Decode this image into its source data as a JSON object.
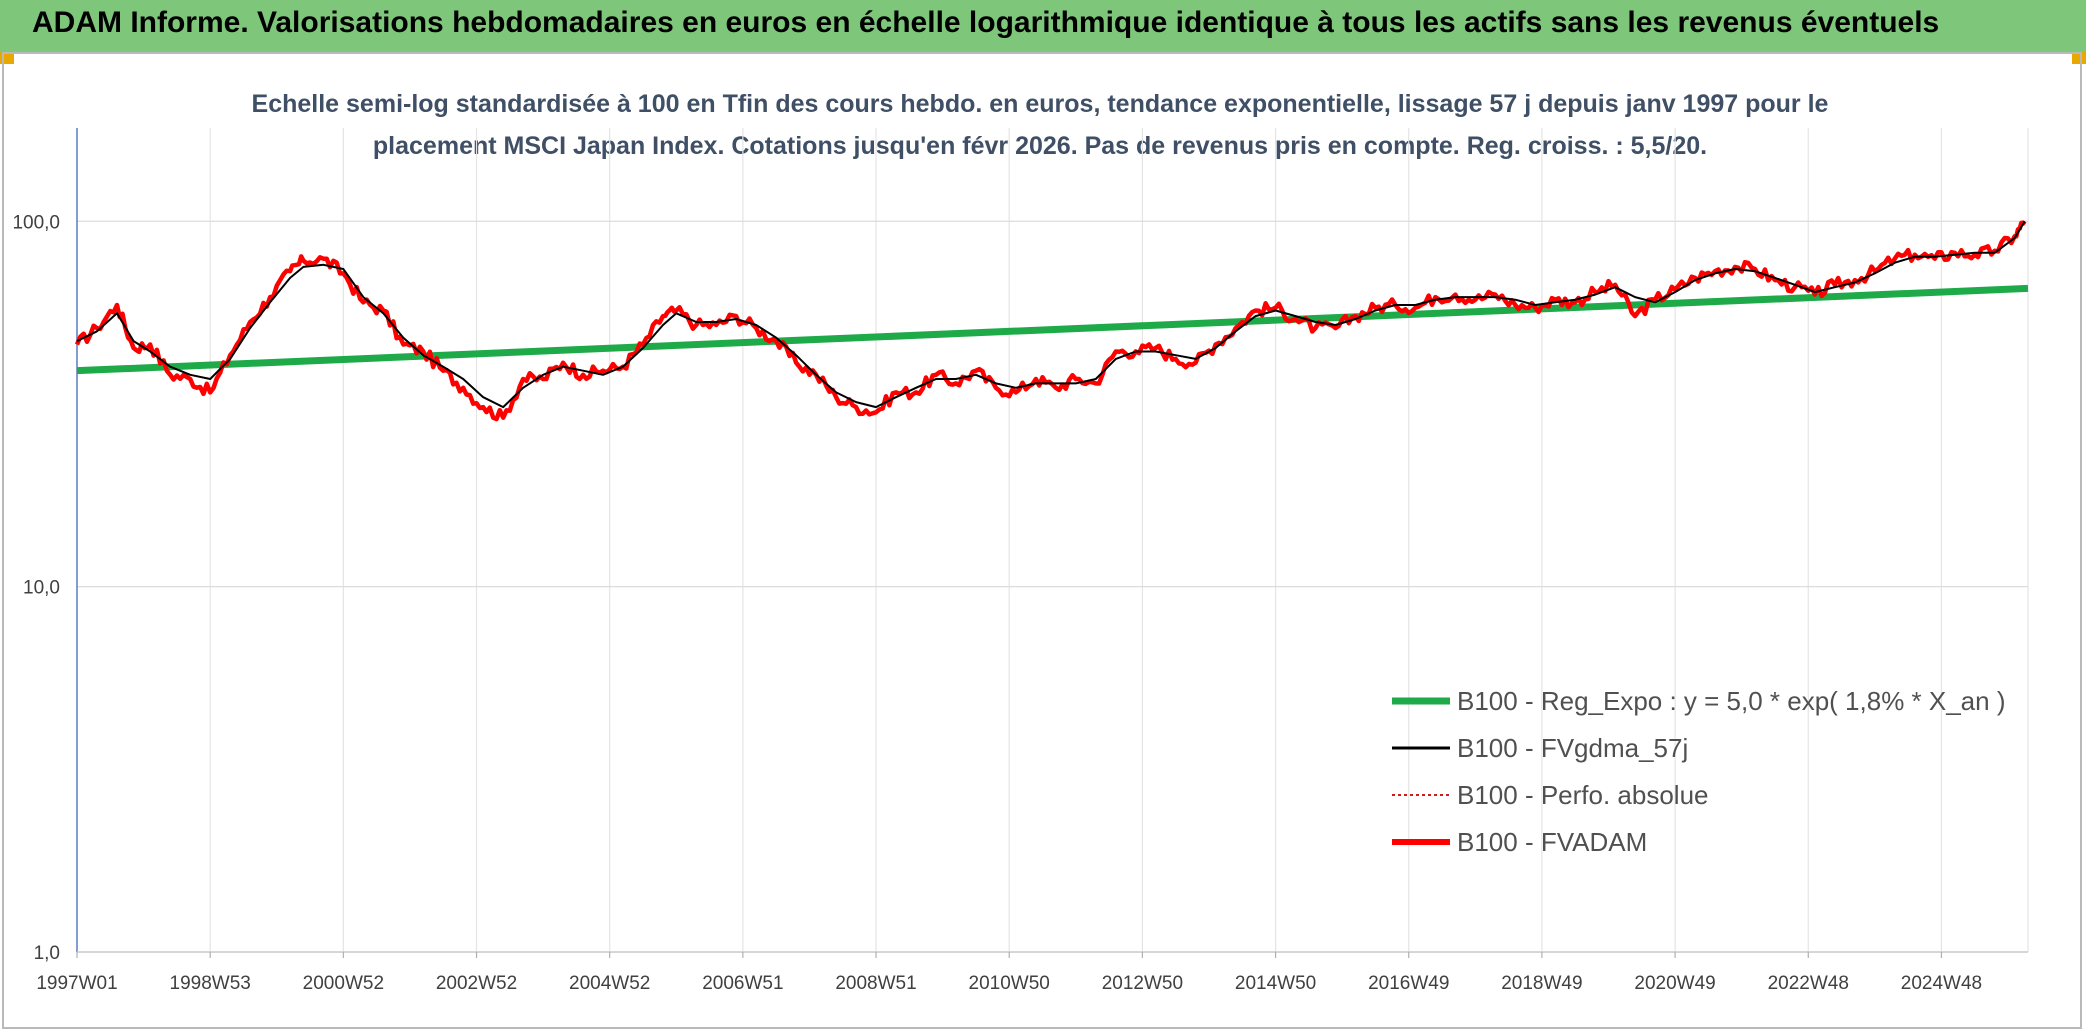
{
  "banner": {
    "title": "ADAM Informe. Valorisations hebdomadaires en euros en échelle logarithmique identique à tous les actifs sans les revenus éventuels",
    "color": "#7dc67a"
  },
  "chart_data": {
    "type": "line",
    "subtitle_lines": [
      "Echelle semi-log standardisée à 100 en Tfin des cours hebdo. en euros, tendance exponentielle, lissage 57 j depuis janv 1997 pour le",
      "placement MSCI Japan Index. Cotations jusqu'en févr 2026. Pas de revenus pris en compte. Reg. croiss. : 5,5/20."
    ],
    "y_scale": "log",
    "ylim": [
      1,
      180
    ],
    "y_ticks": [
      1,
      10,
      100
    ],
    "y_tick_labels": [
      "1,0",
      "10,0",
      "100,0"
    ],
    "xlim": [
      1997.0,
      2026.3
    ],
    "x_ticks": [
      1997.0,
      1999.0,
      2001.0,
      2003.0,
      2005.0,
      2007.0,
      2009.0,
      2011.0,
      2013.0,
      2015.0,
      2017.0,
      2019.0,
      2021.0,
      2023.0,
      2025.0
    ],
    "x_tick_labels": [
      "1997W01",
      "1998W53",
      "2000W52",
      "2002W52",
      "2004W52",
      "2006W51",
      "2008W51",
      "2010W50",
      "2012W50",
      "2014W50",
      "2016W49",
      "2018W49",
      "2020W49",
      "2022W48",
      "2024W48"
    ],
    "grid": true,
    "legend_position": "bottom-right",
    "series": [
      {
        "name": "B100 - Reg_Expo : y = 5,0 * exp( 1,8% *  X_an )",
        "color": "#1faa4a",
        "style": "solid-thick",
        "x": [
          1997.0,
          2026.3
        ],
        "values": [
          39,
          65.5
        ]
      },
      {
        "name": "B100 - FVgdma_57j",
        "color": "#000000",
        "style": "solid",
        "x": [
          1997.0,
          1997.3,
          1997.6,
          1997.85,
          1998.1,
          1998.4,
          1998.7,
          1999.0,
          1999.3,
          1999.6,
          1999.9,
          2000.2,
          2000.4,
          2000.7,
          2001.0,
          2001.3,
          2001.6,
          2001.9,
          2002.2,
          2002.5,
          2002.8,
          2003.1,
          2003.4,
          2003.7,
          2004.0,
          2004.3,
          2004.6,
          2004.9,
          2005.2,
          2005.5,
          2005.8,
          2006.0,
          2006.3,
          2006.6,
          2006.9,
          2007.2,
          2007.5,
          2007.8,
          2008.1,
          2008.4,
          2008.7,
          2009.0,
          2009.3,
          2009.6,
          2009.9,
          2010.2,
          2010.5,
          2010.8,
          2011.1,
          2011.4,
          2011.7,
          2012.0,
          2012.3,
          2012.6,
          2012.9,
          2013.2,
          2013.5,
          2013.8,
          2014.1,
          2014.4,
          2014.7,
          2015.0,
          2015.3,
          2015.6,
          2015.9,
          2016.2,
          2016.5,
          2016.8,
          2017.1,
          2017.4,
          2017.7,
          2018.0,
          2018.3,
          2018.6,
          2018.9,
          2019.2,
          2019.5,
          2019.8,
          2020.1,
          2020.4,
          2020.7,
          2021.0,
          2021.3,
          2021.6,
          2021.9,
          2022.2,
          2022.5,
          2022.8,
          2023.1,
          2023.4,
          2023.7,
          2024.0,
          2024.3,
          2024.6,
          2024.9,
          2025.2,
          2025.5,
          2025.8,
          2026.1,
          2026.25
        ],
        "values": [
          47,
          50,
          56,
          47,
          44,
          40,
          38,
          37,
          42,
          51,
          60,
          70,
          75,
          76,
          74,
          62,
          56,
          48,
          43,
          40,
          37,
          33,
          31,
          35,
          38,
          40,
          39,
          38,
          40,
          45,
          52,
          56,
          53,
          53,
          54,
          52,
          48,
          43,
          38,
          34,
          32,
          31,
          33,
          35,
          37,
          37,
          38,
          36,
          35,
          36,
          36,
          36,
          37,
          42,
          44,
          44,
          43,
          42,
          45,
          50,
          55,
          57,
          55,
          53,
          52,
          54,
          57,
          59,
          59,
          61,
          62,
          62,
          62,
          61,
          59,
          60,
          61,
          63,
          66,
          62,
          60,
          64,
          69,
          72,
          74,
          73,
          70,
          67,
          64,
          66,
          68,
          72,
          77,
          80,
          80,
          81,
          82,
          82,
          90,
          100
        ]
      },
      {
        "name": "B100 - Perfo. absolue",
        "color": "#d11a1a",
        "style": "dotted",
        "x": [],
        "values": []
      },
      {
        "name": "B100 - FVADAM",
        "color": "#ff0000",
        "style": "solid-thick",
        "x": [
          1997.0,
          1997.3,
          1997.6,
          1997.85,
          1998.1,
          1998.4,
          1998.7,
          1999.0,
          1999.3,
          1999.6,
          1999.9,
          2000.2,
          2000.4,
          2000.7,
          2001.0,
          2001.3,
          2001.6,
          2001.9,
          2002.2,
          2002.5,
          2002.8,
          2003.1,
          2003.4,
          2003.7,
          2004.0,
          2004.3,
          2004.6,
          2004.9,
          2005.2,
          2005.5,
          2005.8,
          2006.0,
          2006.3,
          2006.6,
          2006.9,
          2007.2,
          2007.5,
          2007.8,
          2008.1,
          2008.4,
          2008.7,
          2009.0,
          2009.3,
          2009.6,
          2009.9,
          2010.2,
          2010.5,
          2010.8,
          2011.1,
          2011.4,
          2011.7,
          2012.0,
          2012.3,
          2012.6,
          2012.9,
          2013.2,
          2013.5,
          2013.8,
          2014.1,
          2014.4,
          2014.7,
          2015.0,
          2015.3,
          2015.6,
          2015.9,
          2016.2,
          2016.5,
          2016.8,
          2017.1,
          2017.4,
          2017.7,
          2018.0,
          2018.3,
          2018.6,
          2018.9,
          2019.2,
          2019.5,
          2019.8,
          2020.1,
          2020.4,
          2020.7,
          2021.0,
          2021.3,
          2021.6,
          2021.9,
          2022.2,
          2022.5,
          2022.8,
          2023.1,
          2023.4,
          2023.7,
          2024.0,
          2024.3,
          2024.6,
          2024.9,
          2025.2,
          2025.5,
          2025.8,
          2026.1,
          2026.25
        ],
        "values": [
          46,
          51,
          59,
          45,
          46,
          38,
          37,
          34,
          43,
          53,
          62,
          73,
          78,
          79,
          72,
          60,
          57,
          46,
          44,
          39,
          35,
          31,
          29,
          37,
          37,
          41,
          38,
          39,
          40,
          46,
          55,
          57,
          52,
          52,
          55,
          51,
          47,
          41,
          38,
          33,
          31,
          30,
          34,
          34,
          38,
          36,
          39,
          35,
          34,
          37,
          35,
          37,
          36,
          44,
          44,
          45,
          42,
          41,
          46,
          51,
          57,
          58,
          54,
          51,
          51,
          55,
          58,
          59,
          58,
          62,
          63,
          61,
          63,
          59,
          58,
          61,
          60,
          64,
          67,
          55,
          61,
          65,
          70,
          73,
          75,
          74,
          69,
          66,
          63,
          67,
          69,
          73,
          79,
          81,
          79,
          82,
          81,
          83,
          91,
          100
        ]
      }
    ]
  }
}
